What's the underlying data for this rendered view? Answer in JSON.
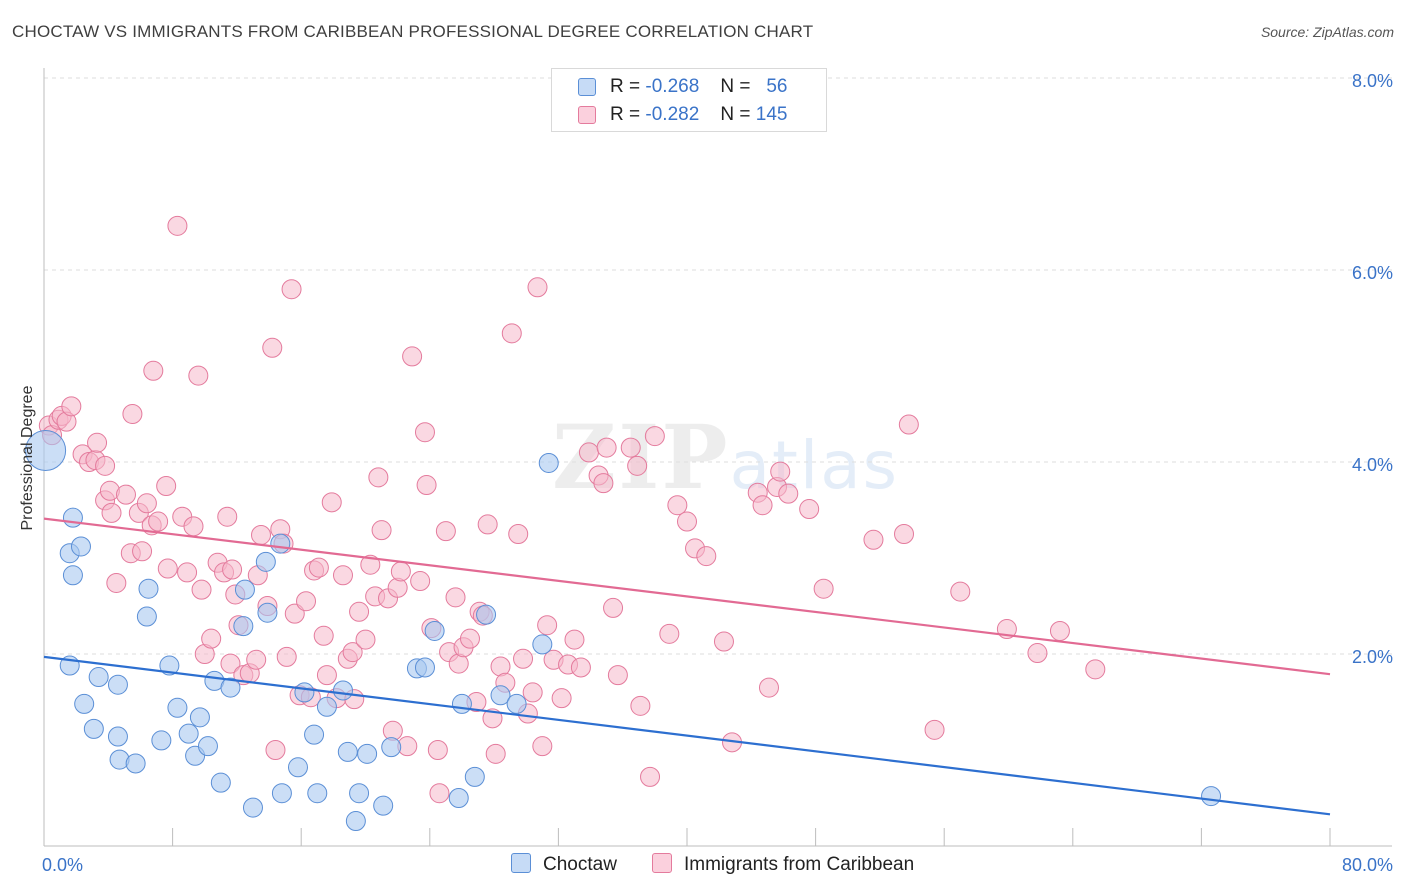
{
  "title": "CHOCTAW VS IMMIGRANTS FROM CARIBBEAN PROFESSIONAL DEGREE CORRELATION CHART",
  "source": "Source: ZipAtlas.com",
  "watermark": {
    "zip": "ZIP",
    "atlas": "atlas"
  },
  "legend": {
    "rows": [
      {
        "r_label": "R =",
        "r_value": "-0.268",
        "n_label": "N =",
        "n_value": "56"
      },
      {
        "r_label": "R =",
        "r_value": "-0.282",
        "n_label": "N =",
        "n_value": "145"
      }
    ]
  },
  "colors": {
    "choctaw_fill": "#a9c8f0",
    "choctaw_stroke": "#5b8fd6",
    "choctaw_line": "#2d6fd0",
    "carib_fill": "#f6b8cb",
    "carib_stroke": "#e47b9d",
    "carib_line": "#e26a93",
    "axis_text": "#3a73c8",
    "grid": "#dedede"
  },
  "chart_data": {
    "type": "scatter",
    "title": "CHOCTAW VS IMMIGRANTS FROM CARIBBEAN PROFESSIONAL DEGREE CORRELATION CHART",
    "xlabel": "",
    "ylabel": "Professional Degree",
    "xlim": [
      0,
      80
    ],
    "ylim": [
      0,
      8
    ],
    "x_tick_labels": [
      "0.0%",
      "80.0%"
    ],
    "y_ticks": [
      2,
      4,
      6,
      8
    ],
    "y_tick_labels": [
      "2.0%",
      "4.0%",
      "6.0%",
      "8.0%"
    ],
    "grid": "horizontal dashed",
    "legend_position": "top-center",
    "series": [
      {
        "name": "Choctaw",
        "r": -0.268,
        "n": 56,
        "trend": {
          "x": [
            0,
            80
          ],
          "y": [
            1.97,
            0.33
          ]
        },
        "points": [
          [
            0.1,
            4.12
          ],
          [
            1.8,
            3.42
          ],
          [
            1.8,
            2.82
          ],
          [
            1.6,
            3.05
          ],
          [
            2.3,
            3.12
          ],
          [
            1.6,
            1.88
          ],
          [
            2.5,
            1.48
          ],
          [
            3.4,
            1.76
          ],
          [
            4.6,
            1.68
          ],
          [
            3.1,
            1.22
          ],
          [
            4.6,
            1.14
          ],
          [
            4.7,
            0.9
          ],
          [
            5.7,
            0.86
          ],
          [
            6.5,
            2.68
          ],
          [
            6.4,
            2.39
          ],
          [
            7.3,
            1.1
          ],
          [
            7.8,
            1.88
          ],
          [
            8.3,
            1.44
          ],
          [
            9.0,
            1.17
          ],
          [
            9.4,
            0.94
          ],
          [
            9.7,
            1.34
          ],
          [
            10.2,
            1.04
          ],
          [
            10.6,
            1.72
          ],
          [
            11.0,
            0.66
          ],
          [
            11.6,
            1.65
          ],
          [
            12.4,
            2.29
          ],
          [
            12.5,
            2.67
          ],
          [
            13.0,
            0.4
          ],
          [
            13.8,
            2.96
          ],
          [
            13.9,
            2.43
          ],
          [
            14.7,
            3.15
          ],
          [
            14.8,
            0.55
          ],
          [
            15.8,
            0.82
          ],
          [
            16.2,
            1.6
          ],
          [
            16.8,
            1.16
          ],
          [
            17.0,
            0.55
          ],
          [
            17.6,
            1.45
          ],
          [
            18.6,
            1.62
          ],
          [
            18.9,
            0.98
          ],
          [
            19.6,
            0.55
          ],
          [
            19.4,
            0.26
          ],
          [
            20.1,
            0.96
          ],
          [
            21.1,
            0.42
          ],
          [
            21.6,
            1.03
          ],
          [
            23.2,
            1.85
          ],
          [
            23.7,
            1.86
          ],
          [
            24.3,
            2.24
          ],
          [
            25.8,
            0.5
          ],
          [
            26.0,
            1.48
          ],
          [
            26.8,
            0.72
          ],
          [
            27.5,
            2.41
          ],
          [
            28.4,
            1.57
          ],
          [
            29.4,
            1.48
          ],
          [
            31.0,
            2.1
          ],
          [
            31.4,
            3.99
          ],
          [
            72.6,
            0.52
          ]
        ]
      },
      {
        "name": "Immigrants from Caribbean",
        "r": -0.282,
        "n": 145,
        "trend": {
          "x": [
            0,
            80
          ],
          "y": [
            3.41,
            1.79
          ]
        },
        "points": [
          [
            0.3,
            4.38
          ],
          [
            0.5,
            4.28
          ],
          [
            0.9,
            4.44
          ],
          [
            1.1,
            4.48
          ],
          [
            1.4,
            4.42
          ],
          [
            1.7,
            4.58
          ],
          [
            2.4,
            4.08
          ],
          [
            2.8,
            4.0
          ],
          [
            3.2,
            4.02
          ],
          [
            3.3,
            4.2
          ],
          [
            3.8,
            3.6
          ],
          [
            3.8,
            3.96
          ],
          [
            4.1,
            3.7
          ],
          [
            4.2,
            3.47
          ],
          [
            4.5,
            2.74
          ],
          [
            5.1,
            3.66
          ],
          [
            5.4,
            3.05
          ],
          [
            5.5,
            4.5
          ],
          [
            5.9,
            3.47
          ],
          [
            6.1,
            3.07
          ],
          [
            6.4,
            3.57
          ],
          [
            6.7,
            3.34
          ],
          [
            6.8,
            4.95
          ],
          [
            7.1,
            3.38
          ],
          [
            7.6,
            3.75
          ],
          [
            7.7,
            2.89
          ],
          [
            8.3,
            6.46
          ],
          [
            8.6,
            3.43
          ],
          [
            8.9,
            2.85
          ],
          [
            9.3,
            3.33
          ],
          [
            9.6,
            4.9
          ],
          [
            9.8,
            2.67
          ],
          [
            10.0,
            2.0
          ],
          [
            10.4,
            2.16
          ],
          [
            10.8,
            2.95
          ],
          [
            11.2,
            2.85
          ],
          [
            11.4,
            3.43
          ],
          [
            11.6,
            1.9
          ],
          [
            11.7,
            2.88
          ],
          [
            11.9,
            2.62
          ],
          [
            12.1,
            2.3
          ],
          [
            12.4,
            1.78
          ],
          [
            12.8,
            1.8
          ],
          [
            13.2,
            1.94
          ],
          [
            13.3,
            2.82
          ],
          [
            13.5,
            3.24
          ],
          [
            13.9,
            2.5
          ],
          [
            14.2,
            5.19
          ],
          [
            14.4,
            1.0
          ],
          [
            14.7,
            3.3
          ],
          [
            14.9,
            3.15
          ],
          [
            15.1,
            1.97
          ],
          [
            15.4,
            5.8
          ],
          [
            15.6,
            2.42
          ],
          [
            15.9,
            1.57
          ],
          [
            16.3,
            2.55
          ],
          [
            16.6,
            1.55
          ],
          [
            16.8,
            2.87
          ],
          [
            17.1,
            2.9
          ],
          [
            17.4,
            2.19
          ],
          [
            17.6,
            1.78
          ],
          [
            17.9,
            3.58
          ],
          [
            18.2,
            1.54
          ],
          [
            18.6,
            2.82
          ],
          [
            18.9,
            1.95
          ],
          [
            19.2,
            2.02
          ],
          [
            19.3,
            1.53
          ],
          [
            19.6,
            2.44
          ],
          [
            20.0,
            2.15
          ],
          [
            20.3,
            2.93
          ],
          [
            20.6,
            2.6
          ],
          [
            20.8,
            3.84
          ],
          [
            21.0,
            3.29
          ],
          [
            21.4,
            2.58
          ],
          [
            21.7,
            1.2
          ],
          [
            22.0,
            2.69
          ],
          [
            22.2,
            2.86
          ],
          [
            22.6,
            1.04
          ],
          [
            22.9,
            5.1
          ],
          [
            23.4,
            2.76
          ],
          [
            23.7,
            4.31
          ],
          [
            23.8,
            3.76
          ],
          [
            24.1,
            2.27
          ],
          [
            24.5,
            1.0
          ],
          [
            24.6,
            0.55
          ],
          [
            25.0,
            3.28
          ],
          [
            25.2,
            2.02
          ],
          [
            25.6,
            2.59
          ],
          [
            25.8,
            1.9
          ],
          [
            26.1,
            2.07
          ],
          [
            26.5,
            2.16
          ],
          [
            26.9,
            1.5
          ],
          [
            27.1,
            2.44
          ],
          [
            27.3,
            2.4
          ],
          [
            27.6,
            3.35
          ],
          [
            27.9,
            1.33
          ],
          [
            28.1,
            0.96
          ],
          [
            28.4,
            1.87
          ],
          [
            28.7,
            1.7
          ],
          [
            29.1,
            5.34
          ],
          [
            29.5,
            3.25
          ],
          [
            29.8,
            1.95
          ],
          [
            30.1,
            1.38
          ],
          [
            30.4,
            1.6
          ],
          [
            30.7,
            5.82
          ],
          [
            31.0,
            1.04
          ],
          [
            31.3,
            2.3
          ],
          [
            31.7,
            1.94
          ],
          [
            32.2,
            1.54
          ],
          [
            32.6,
            1.89
          ],
          [
            33.0,
            2.15
          ],
          [
            33.4,
            1.86
          ],
          [
            33.9,
            4.1
          ],
          [
            34.5,
            3.86
          ],
          [
            34.8,
            3.78
          ],
          [
            35.0,
            4.15
          ],
          [
            35.4,
            2.48
          ],
          [
            35.7,
            1.78
          ],
          [
            36.5,
            4.15
          ],
          [
            36.9,
            3.96
          ],
          [
            37.1,
            1.46
          ],
          [
            37.7,
            0.72
          ],
          [
            38.0,
            4.27
          ],
          [
            38.9,
            2.21
          ],
          [
            39.4,
            3.55
          ],
          [
            40.0,
            3.38
          ],
          [
            40.5,
            3.1
          ],
          [
            41.2,
            3.02
          ],
          [
            42.3,
            2.13
          ],
          [
            42.8,
            1.08
          ],
          [
            44.4,
            3.68
          ],
          [
            44.7,
            3.55
          ],
          [
            45.1,
            1.65
          ],
          [
            45.6,
            3.74
          ],
          [
            45.8,
            3.9
          ],
          [
            46.3,
            3.67
          ],
          [
            47.6,
            3.51
          ],
          [
            48.5,
            2.68
          ],
          [
            51.6,
            3.19
          ],
          [
            53.5,
            3.25
          ],
          [
            53.8,
            4.39
          ],
          [
            55.4,
            1.21
          ],
          [
            57.0,
            2.65
          ],
          [
            59.9,
            2.26
          ],
          [
            61.8,
            2.01
          ],
          [
            63.2,
            2.24
          ],
          [
            65.4,
            1.84
          ]
        ]
      }
    ]
  },
  "bottom_legend": [
    {
      "label": "Choctaw"
    },
    {
      "label": "Immigrants from Caribbean"
    }
  ]
}
